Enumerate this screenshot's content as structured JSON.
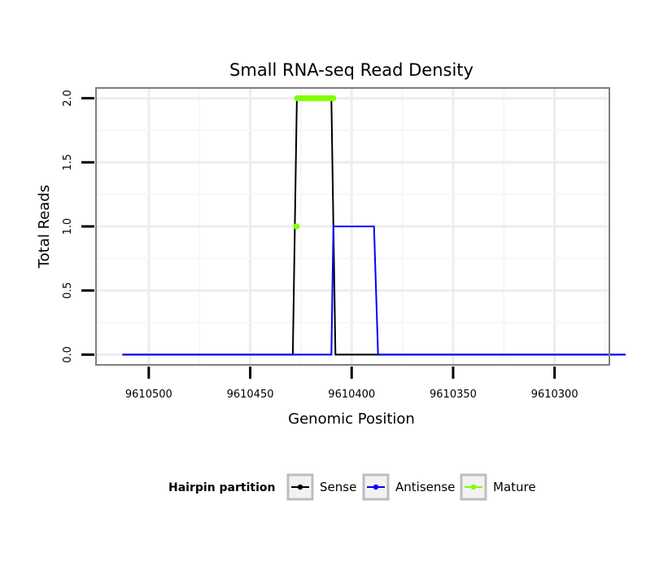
{
  "chart_data": {
    "type": "line",
    "title": "Small RNA-seq Read Density",
    "xlabel": "Genomic Position",
    "ylabel": "Total Reads",
    "x_reversed": true,
    "xlim": [
      9610526,
      9610273
    ],
    "ylim": [
      -0.08,
      2.08
    ],
    "x_ticks": [
      9610500,
      9610450,
      9610400,
      9610350,
      9610300
    ],
    "x_tick_labels": [
      "9610500",
      "9610450",
      "9610400",
      "9610350",
      "9610300"
    ],
    "y_ticks": [
      0.0,
      0.5,
      1.0,
      1.5,
      2.0
    ],
    "y_tick_labels": [
      "0.0",
      "0.5",
      "1.0",
      "1.5",
      "2.0"
    ],
    "grid": true,
    "legend": {
      "title": "Hairpin partition",
      "position": "bottom",
      "entries": [
        {
          "label": "Sense",
          "color": "#000000"
        },
        {
          "label": "Antisense",
          "color": "#0000ff"
        },
        {
          "label": "Mature",
          "color": "#7fff00"
        }
      ]
    },
    "series": [
      {
        "name": "Sense",
        "color": "#000000",
        "x": [
          9610513,
          9610429,
          9610427,
          9610410,
          9610408,
          9610265
        ],
        "y": [
          0,
          0,
          2,
          2,
          0,
          0
        ]
      },
      {
        "name": "Antisense",
        "color": "#0000ff",
        "x": [
          9610513,
          9610410,
          9610409,
          9610389,
          9610387,
          9610265
        ],
        "y": [
          0,
          0,
          1,
          1,
          0,
          0
        ]
      },
      {
        "name": "Mature",
        "color": "#7fff00",
        "segments": [
          {
            "x": [
              9610427.5,
              9610427
            ],
            "y": [
              1,
              1
            ]
          },
          {
            "x": [
              9610427,
              9610409
            ],
            "y": [
              2,
              2
            ]
          }
        ]
      }
    ]
  }
}
